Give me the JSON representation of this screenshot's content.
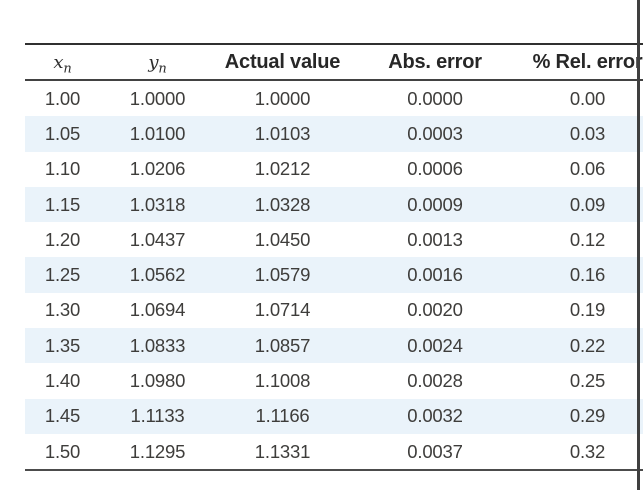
{
  "page": {
    "background_color": "#ffffff",
    "stripe_color": "#eaf3fa",
    "border_color": "#424242",
    "data_text_color": "#3e3d3b",
    "header_text_color": "#272727",
    "window_edge_color": "#3f3f3f"
  },
  "table": {
    "headers": {
      "col1": {
        "base": "x",
        "sub": "n"
      },
      "col2": {
        "base": "y",
        "sub": "n"
      },
      "col3": "Actual value",
      "col4": "Abs. error",
      "col5": "% Rel. error"
    },
    "rows": [
      [
        "1.00",
        "1.0000",
        "1.0000",
        "0.0000",
        "0.00"
      ],
      [
        "1.05",
        "1.0100",
        "1.0103",
        "0.0003",
        "0.03"
      ],
      [
        "1.10",
        "1.0206",
        "1.0212",
        "0.0006",
        "0.06"
      ],
      [
        "1.15",
        "1.0318",
        "1.0328",
        "0.0009",
        "0.09"
      ],
      [
        "1.20",
        "1.0437",
        "1.0450",
        "0.0013",
        "0.12"
      ],
      [
        "1.25",
        "1.0562",
        "1.0579",
        "0.0016",
        "0.16"
      ],
      [
        "1.30",
        "1.0694",
        "1.0714",
        "0.0020",
        "0.19"
      ],
      [
        "1.35",
        "1.0833",
        "1.0857",
        "0.0024",
        "0.22"
      ],
      [
        "1.40",
        "1.0980",
        "1.1008",
        "0.0028",
        "0.25"
      ],
      [
        "1.45",
        "1.1133",
        "1.1166",
        "0.0032",
        "0.29"
      ],
      [
        "1.50",
        "1.1295",
        "1.1331",
        "0.0037",
        "0.32"
      ]
    ]
  }
}
